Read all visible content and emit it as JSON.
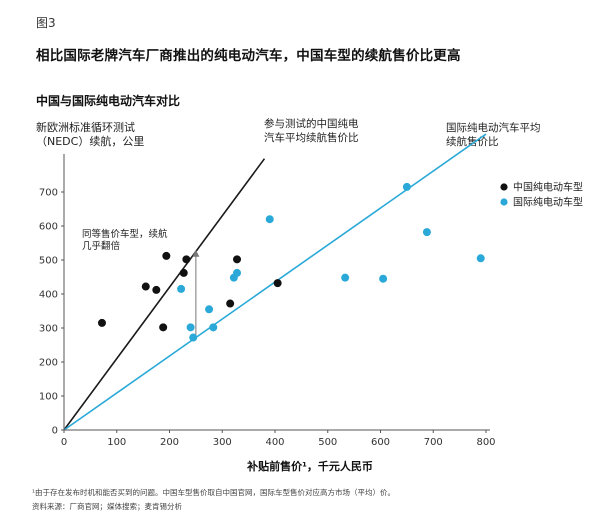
{
  "figure_label": "图3",
  "title": "相比国际老牌汽车厂商推出的纯电动汽车，中国车型的续航售价比更高",
  "notes": {
    "line1": "¹由于存在发布时机和能否买到的问题。中国车型售价取自中国官网，国际车型售价对应高方市场（平均）价。",
    "line2": "资料来源：厂商官网；媒体搜索；麦肯锡分析"
  },
  "annotations": {
    "cn_line": [
      "参与测试的中国纯电",
      "汽车平均续航售价比"
    ],
    "intl_line": [
      "国际纯电动汽车平均",
      "续航售价比"
    ],
    "same_price": [
      "同等售价车型，续航",
      "几乎翻倍"
    ]
  },
  "colors": {
    "china": "#111111",
    "intl": "#2aa9d8",
    "cn_line": "#1a1a1a",
    "intl_line": "#2aa9d8",
    "axis": "#555555"
  },
  "chart_data": {
    "type": "scatter",
    "title": "中国与国际纯电动汽车对比",
    "ylabel": [
      "新欧洲标准循环测试",
      "（NEDC）续航，公里"
    ],
    "xlabel": "补贴前售价¹，千元人民币",
    "xlim": [
      0,
      800
    ],
    "ylim": [
      0,
      800
    ],
    "xticks": [
      0,
      100,
      200,
      300,
      400,
      500,
      600,
      700,
      800
    ],
    "yticks": [
      0,
      100,
      200,
      300,
      400,
      500,
      600,
      700
    ],
    "grid": false,
    "legend_position": "right",
    "series": [
      {
        "name": "中国纯电动车型",
        "color": "#111111",
        "points": [
          {
            "x": 72,
            "y": 315
          },
          {
            "x": 155,
            "y": 422
          },
          {
            "x": 175,
            "y": 412
          },
          {
            "x": 188,
            "y": 302
          },
          {
            "x": 194,
            "y": 512
          },
          {
            "x": 227,
            "y": 462
          },
          {
            "x": 232,
            "y": 502
          },
          {
            "x": 315,
            "y": 372
          },
          {
            "x": 328,
            "y": 502
          },
          {
            "x": 405,
            "y": 432
          }
        ]
      },
      {
        "name": "国际纯电动车型",
        "color": "#2aa9d8",
        "points": [
          {
            "x": 222,
            "y": 415
          },
          {
            "x": 240,
            "y": 302
          },
          {
            "x": 245,
            "y": 272
          },
          {
            "x": 275,
            "y": 355
          },
          {
            "x": 283,
            "y": 302
          },
          {
            "x": 322,
            "y": 448
          },
          {
            "x": 328,
            "y": 462
          },
          {
            "x": 390,
            "y": 620
          },
          {
            "x": 533,
            "y": 448
          },
          {
            "x": 605,
            "y": 445
          },
          {
            "x": 650,
            "y": 715
          },
          {
            "x": 688,
            "y": 582
          },
          {
            "x": 790,
            "y": 505
          }
        ]
      }
    ],
    "trend_lines": [
      {
        "name": "cn_line",
        "slope": 2.1,
        "x_end": 380
      },
      {
        "name": "intl_line",
        "slope": 1.088,
        "x_end": 800
      }
    ],
    "reference_arrow": {
      "x": 250,
      "from_y": 272,
      "to_y": 530
    }
  }
}
